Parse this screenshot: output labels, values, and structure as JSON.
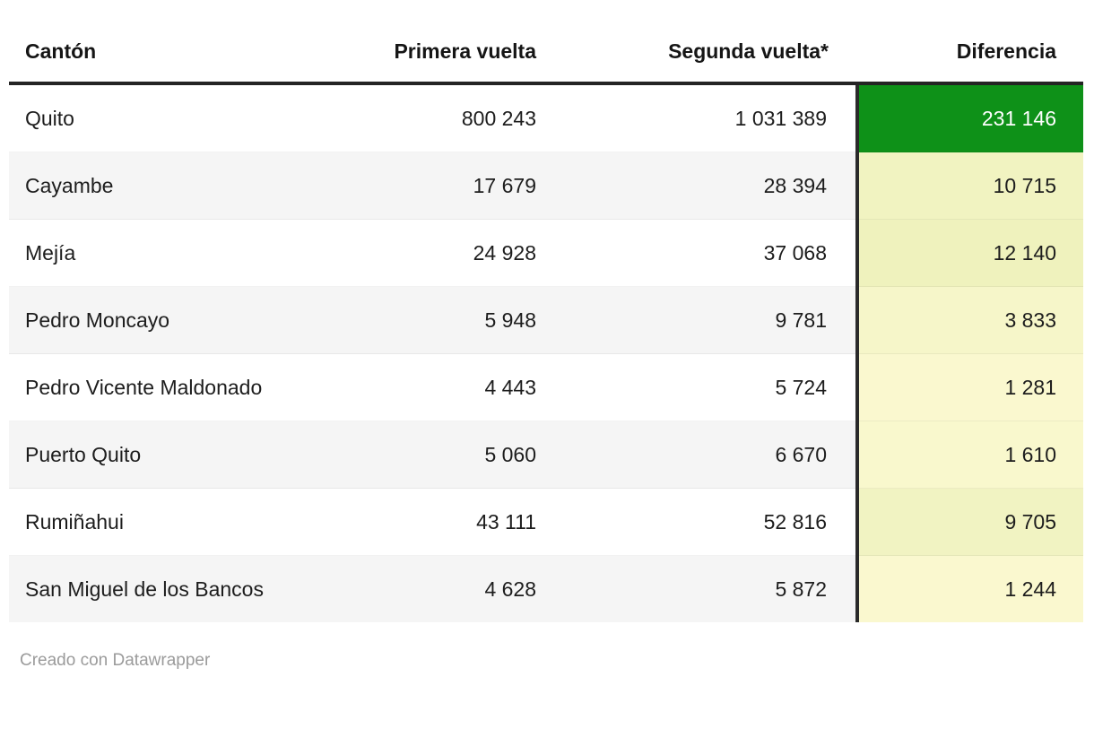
{
  "table": {
    "columns": [
      {
        "key": "canton",
        "label": "Cantón",
        "align": "left"
      },
      {
        "key": "primera",
        "label": "Primera vuelta",
        "align": "right"
      },
      {
        "key": "segunda",
        "label": "Segunda vuelta*",
        "align": "right"
      },
      {
        "key": "diferencia",
        "label": "Diferencia",
        "align": "right"
      }
    ],
    "rows": [
      {
        "canton": "Quito",
        "primera": "800 243",
        "segunda": "1 031 389",
        "diferencia": "231 146",
        "diff_bg": "#0e9118",
        "diff_color": "#ffffff"
      },
      {
        "canton": "Cayambe",
        "primera": "17 679",
        "segunda": "28 394",
        "diferencia": "10 715",
        "diff_bg": "#f1f3c1",
        "diff_color": "#1d1d1d"
      },
      {
        "canton": "Mejía",
        "primera": "24 928",
        "segunda": "37 068",
        "diferencia": "12 140",
        "diff_bg": "#eff2bd",
        "diff_color": "#1d1d1d"
      },
      {
        "canton": "Pedro Moncayo",
        "primera": "5 948",
        "segunda": "9 781",
        "diferencia": "3 833",
        "diff_bg": "#f6f6c9",
        "diff_color": "#1d1d1d"
      },
      {
        "canton": "Pedro Vicente Maldonado",
        "primera": "4 443",
        "segunda": "5 724",
        "diferencia": "1 281",
        "diff_bg": "#faf8cf",
        "diff_color": "#1d1d1d"
      },
      {
        "canton": "Puerto Quito",
        "primera": "5 060",
        "segunda": "6 670",
        "diferencia": "1 610",
        "diff_bg": "#f9f8cd",
        "diff_color": "#1d1d1d"
      },
      {
        "canton": "Rumiñahui",
        "primera": "43 111",
        "segunda": "52 816",
        "diferencia": "9 705",
        "diff_bg": "#f1f3c2",
        "diff_color": "#1d1d1d"
      },
      {
        "canton": "San Miguel de los Bancos",
        "primera": "4 628",
        "segunda": "5 872",
        "diferencia": "1 244",
        "diff_bg": "#faf8cf",
        "diff_color": "#1d1d1d"
      }
    ]
  },
  "footer": {
    "credit": "Creado con Datawrapper"
  },
  "colors": {
    "accent_green": "#0e9118",
    "stripe_gray": "#f5f5f5",
    "header_border": "#242424",
    "diff_divider": "#2a2a2a",
    "footer_text": "#9b9b9b"
  },
  "chart_data": {
    "type": "table",
    "columns": [
      "Cantón",
      "Primera vuelta",
      "Segunda vuelta*",
      "Diferencia"
    ],
    "rows": [
      [
        "Quito",
        800243,
        1031389,
        231146
      ],
      [
        "Cayambe",
        17679,
        28394,
        10715
      ],
      [
        "Mejía",
        24928,
        37068,
        12140
      ],
      [
        "Pedro Moncayo",
        5948,
        9781,
        3833
      ],
      [
        "Pedro Vicente Maldonado",
        4443,
        5724,
        1281
      ],
      [
        "Puerto Quito",
        5060,
        6670,
        1610
      ],
      [
        "Rumiñahui",
        43111,
        52816,
        9705
      ],
      [
        "San Miguel de los Bancos",
        4628,
        5872,
        1244
      ]
    ],
    "heatmap_column": "Diferencia",
    "heatmap_scale": [
      "#faf8cf",
      "#0e9118"
    ],
    "number_format": "thousands separated by space",
    "layout_hints": {
      "striped_rows": true,
      "diff_column_separated_by_dark_rule": true,
      "header_rule_thickness_px": 4
    }
  }
}
